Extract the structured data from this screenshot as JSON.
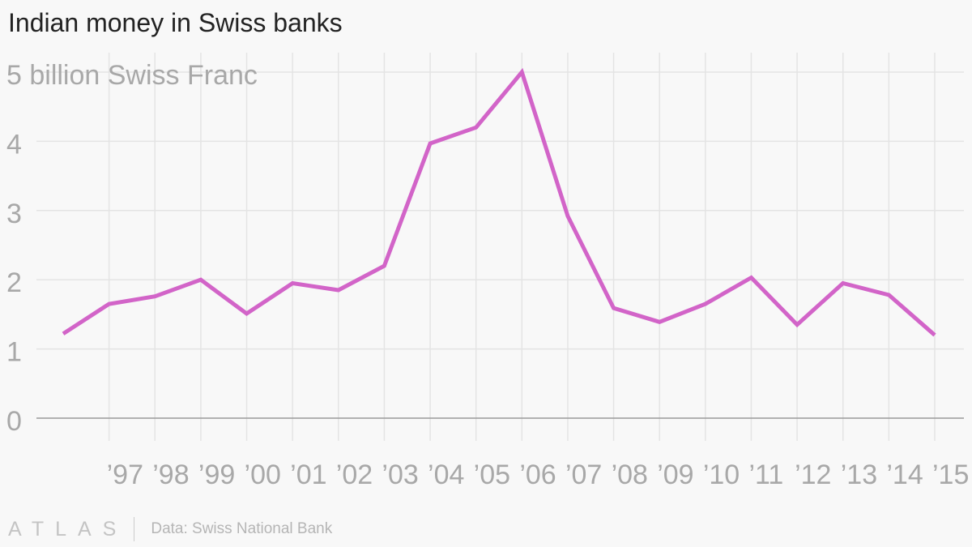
{
  "title": "Indian money in Swiss banks",
  "brand": "ATLAS",
  "source": "Data: Swiss National Bank",
  "colors": {
    "line": "#d264c8",
    "grid": "#e4e4e4",
    "zero_line": "#999999",
    "tick_text": "#a8a8a8",
    "title": "#222222",
    "background": "#f8f8f8"
  },
  "chart_data": {
    "type": "line",
    "title": "Indian money in Swiss banks",
    "ylabel": "billion Swiss Franc",
    "ylim": [
      0,
      5
    ],
    "yticks": [
      0,
      1,
      2,
      3,
      4,
      5
    ],
    "ytick_labels": [
      "0",
      "1",
      "2",
      "3",
      "4",
      "5 billion Swiss Franc"
    ],
    "x": [
      1996,
      1997,
      1998,
      1999,
      2000,
      2001,
      2002,
      2003,
      2004,
      2005,
      2006,
      2007,
      2008,
      2009,
      2010,
      2011,
      2012,
      2013,
      2014,
      2015
    ],
    "xticks": [
      1997,
      1998,
      1999,
      2000,
      2001,
      2002,
      2003,
      2004,
      2005,
      2006,
      2007,
      2008,
      2009,
      2010,
      2011,
      2012,
      2013,
      2014,
      2015
    ],
    "xtick_labels": [
      "’97",
      "’98",
      "’99",
      "’00",
      "’01",
      "’02",
      "’03",
      "’04",
      "’05",
      "’06",
      "’07",
      "’08",
      "’09",
      "’10",
      "’11",
      "’12",
      "’13",
      "’14",
      "’15"
    ],
    "grid": true,
    "legend": "none",
    "series": [
      {
        "values": [
          1.22,
          1.65,
          1.76,
          2.0,
          1.51,
          1.95,
          1.85,
          2.2,
          3.97,
          4.2,
          5.0,
          2.92,
          1.59,
          1.39,
          1.65,
          2.03,
          1.35,
          1.95,
          1.78,
          1.2
        ]
      }
    ]
  }
}
